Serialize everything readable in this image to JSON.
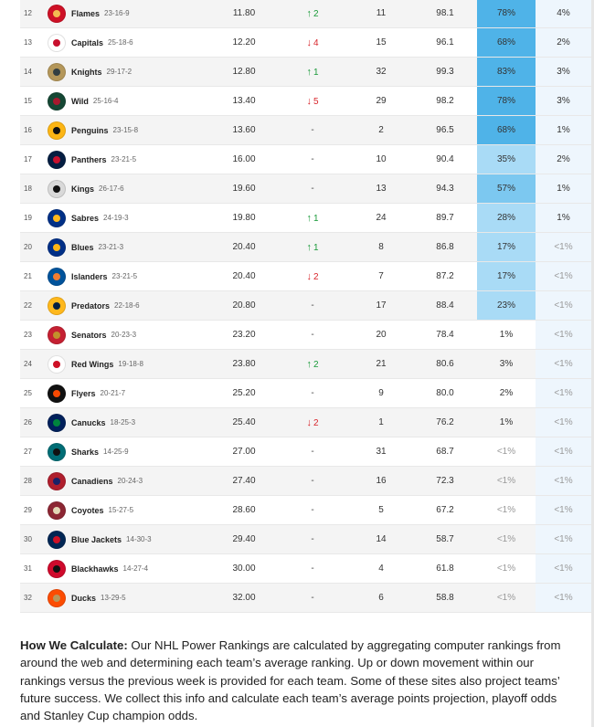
{
  "colors": {
    "playoff_high": "#4fb3e8",
    "playoff_mid": "#7cc8f0",
    "playoff_low": "#a9dbf6",
    "cup_col": "#eef6fd",
    "up": "#1a9a3a",
    "down": "#d8262c"
  },
  "rows": [
    {
      "rank": "12",
      "name": "Flames",
      "record": "23-16-9",
      "avg": "11.80",
      "mv_dir": "up",
      "mv_val": "2",
      "last": "11",
      "pts": "98.1",
      "playoff": "78%",
      "playoff_shade": "high",
      "cup": "4%",
      "logo": [
        "#ce1126",
        "#f3bc52"
      ]
    },
    {
      "rank": "13",
      "name": "Capitals",
      "record": "25-18-6",
      "avg": "12.20",
      "mv_dir": "down",
      "mv_val": "4",
      "last": "15",
      "pts": "96.1",
      "playoff": "68%",
      "playoff_shade": "high",
      "cup": "2%",
      "logo": [
        "#ffffff",
        "#c8102e"
      ]
    },
    {
      "rank": "14",
      "name": "Knights",
      "record": "29-17-2",
      "avg": "12.80",
      "mv_dir": "up",
      "mv_val": "1",
      "last": "32",
      "pts": "99.3",
      "playoff": "83%",
      "playoff_shade": "high",
      "cup": "3%",
      "logo": [
        "#b4975a",
        "#333f42"
      ]
    },
    {
      "rank": "15",
      "name": "Wild",
      "record": "25-16-4",
      "avg": "13.40",
      "mv_dir": "down",
      "mv_val": "5",
      "last": "29",
      "pts": "98.2",
      "playoff": "78%",
      "playoff_shade": "high",
      "cup": "3%",
      "logo": [
        "#154734",
        "#a6192e"
      ]
    },
    {
      "rank": "16",
      "name": "Penguins",
      "record": "23-15-8",
      "avg": "13.60",
      "mv_dir": "none",
      "mv_val": "-",
      "last": "2",
      "pts": "96.5",
      "playoff": "68%",
      "playoff_shade": "high",
      "cup": "1%",
      "logo": [
        "#fcb514",
        "#111111"
      ]
    },
    {
      "rank": "17",
      "name": "Panthers",
      "record": "23-21-5",
      "avg": "16.00",
      "mv_dir": "none",
      "mv_val": "-",
      "last": "10",
      "pts": "90.4",
      "playoff": "35%",
      "playoff_shade": "low",
      "cup": "2%",
      "logo": [
        "#041e42",
        "#c8102e"
      ]
    },
    {
      "rank": "18",
      "name": "Kings",
      "record": "26-17-6",
      "avg": "19.60",
      "mv_dir": "none",
      "mv_val": "-",
      "last": "13",
      "pts": "94.3",
      "playoff": "57%",
      "playoff_shade": "mid",
      "cup": "1%",
      "logo": [
        "#d9d9d9",
        "#111111"
      ]
    },
    {
      "rank": "19",
      "name": "Sabres",
      "record": "24-19-3",
      "avg": "19.80",
      "mv_dir": "up",
      "mv_val": "1",
      "last": "24",
      "pts": "89.7",
      "playoff": "28%",
      "playoff_shade": "low",
      "cup": "1%",
      "logo": [
        "#003087",
        "#ffb81c"
      ]
    },
    {
      "rank": "20",
      "name": "Blues",
      "record": "23-21-3",
      "avg": "20.40",
      "mv_dir": "up",
      "mv_val": "1",
      "last": "8",
      "pts": "86.8",
      "playoff": "17%",
      "playoff_shade": "low",
      "cup": "<1%",
      "logo": [
        "#002f87",
        "#fcb514"
      ]
    },
    {
      "rank": "21",
      "name": "Islanders",
      "record": "23-21-5",
      "avg": "20.40",
      "mv_dir": "down",
      "mv_val": "2",
      "last": "7",
      "pts": "87.2",
      "playoff": "17%",
      "playoff_shade": "low",
      "cup": "<1%",
      "logo": [
        "#00539b",
        "#f47d30"
      ]
    },
    {
      "rank": "22",
      "name": "Predators",
      "record": "22-18-6",
      "avg": "20.80",
      "mv_dir": "none",
      "mv_val": "-",
      "last": "17",
      "pts": "88.4",
      "playoff": "23%",
      "playoff_shade": "low",
      "cup": "<1%",
      "logo": [
        "#ffb81c",
        "#041e42"
      ]
    },
    {
      "rank": "23",
      "name": "Senators",
      "record": "20-23-3",
      "avg": "23.20",
      "mv_dir": "none",
      "mv_val": "-",
      "last": "20",
      "pts": "78.4",
      "playoff": "1%",
      "playoff_shade": "none",
      "cup": "<1%",
      "logo": [
        "#c52032",
        "#c2912c"
      ]
    },
    {
      "rank": "24",
      "name": "Red Wings",
      "record": "19-18-8",
      "avg": "23.80",
      "mv_dir": "up",
      "mv_val": "2",
      "last": "21",
      "pts": "80.6",
      "playoff": "3%",
      "playoff_shade": "none",
      "cup": "<1%",
      "logo": [
        "#ffffff",
        "#ce1126"
      ]
    },
    {
      "rank": "25",
      "name": "Flyers",
      "record": "20-21-7",
      "avg": "25.20",
      "mv_dir": "none",
      "mv_val": "-",
      "last": "9",
      "pts": "80.0",
      "playoff": "2%",
      "playoff_shade": "none",
      "cup": "<1%",
      "logo": [
        "#111111",
        "#f74902"
      ]
    },
    {
      "rank": "26",
      "name": "Canucks",
      "record": "18-25-3",
      "avg": "25.40",
      "mv_dir": "down",
      "mv_val": "2",
      "last": "1",
      "pts": "76.2",
      "playoff": "1%",
      "playoff_shade": "none",
      "cup": "<1%",
      "logo": [
        "#00205b",
        "#00843d"
      ]
    },
    {
      "rank": "27",
      "name": "Sharks",
      "record": "14-25-9",
      "avg": "27.00",
      "mv_dir": "none",
      "mv_val": "-",
      "last": "31",
      "pts": "68.7",
      "playoff": "<1%",
      "playoff_shade": "none",
      "cup": "<1%",
      "logo": [
        "#006d75",
        "#111111"
      ]
    },
    {
      "rank": "28",
      "name": "Canadiens",
      "record": "20-24-3",
      "avg": "27.40",
      "mv_dir": "none",
      "mv_val": "-",
      "last": "16",
      "pts": "72.3",
      "playoff": "<1%",
      "playoff_shade": "none",
      "cup": "<1%",
      "logo": [
        "#af1e2d",
        "#192168"
      ]
    },
    {
      "rank": "29",
      "name": "Coyotes",
      "record": "15-27-5",
      "avg": "28.60",
      "mv_dir": "none",
      "mv_val": "-",
      "last": "5",
      "pts": "67.2",
      "playoff": "<1%",
      "playoff_shade": "none",
      "cup": "<1%",
      "logo": [
        "#8c2633",
        "#e2d6b5"
      ]
    },
    {
      "rank": "30",
      "name": "Blue Jackets",
      "record": "14-30-3",
      "avg": "29.40",
      "mv_dir": "none",
      "mv_val": "-",
      "last": "14",
      "pts": "58.7",
      "playoff": "<1%",
      "playoff_shade": "none",
      "cup": "<1%",
      "logo": [
        "#002654",
        "#ce1126"
      ]
    },
    {
      "rank": "31",
      "name": "Blackhawks",
      "record": "14-27-4",
      "avg": "30.00",
      "mv_dir": "none",
      "mv_val": "-",
      "last": "4",
      "pts": "61.8",
      "playoff": "<1%",
      "playoff_shade": "none",
      "cup": "<1%",
      "logo": [
        "#cf0a2c",
        "#111111"
      ]
    },
    {
      "rank": "32",
      "name": "Ducks",
      "record": "13-29-5",
      "avg": "32.00",
      "mv_dir": "none",
      "mv_val": "-",
      "last": "6",
      "pts": "58.8",
      "playoff": "<1%",
      "playoff_shade": "none",
      "cup": "<1%",
      "logo": [
        "#fc4c02",
        "#b9975b"
      ]
    }
  ],
  "calc": {
    "heading": "How We Calculate:",
    "body": " Our NHL Power Rankings are calculated by aggregating computer rankings from around the web and determining each team’s average ranking. Up or down movement within our rankings versus the previous week is provided for each team. Some of these sites also project teams’ future success. We collect this info and calculate each team’s average points projection, playoff odds and Stanley Cup champion odds."
  }
}
